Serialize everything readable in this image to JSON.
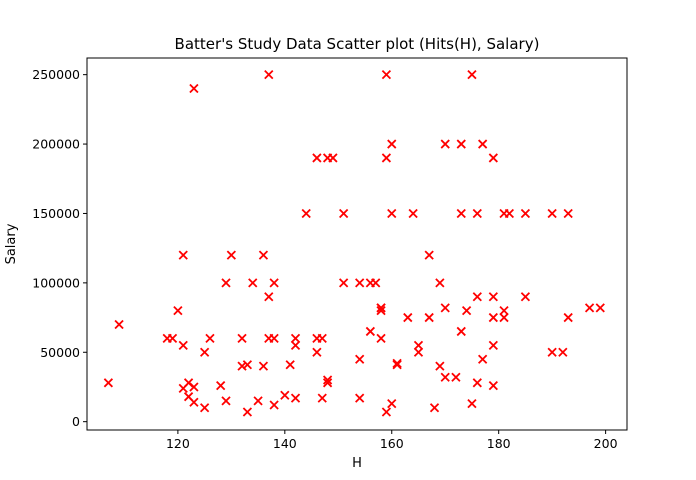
{
  "chart_data": {
    "type": "scatter",
    "title": "Batter's Study Data Scatter plot (Hits(H), Salary)",
    "xlabel": "H",
    "ylabel": "Salary",
    "xlim": [
      103,
      204
    ],
    "ylim": [
      -6000,
      262000
    ],
    "xticks": [
      120,
      140,
      160,
      180,
      200
    ],
    "yticks": [
      0,
      50000,
      100000,
      150000,
      200000,
      250000
    ],
    "grid": false,
    "marker": "x",
    "marker_color": "#ff0000",
    "x": [
      107,
      109,
      118,
      119,
      120,
      121,
      121,
      121,
      122,
      122,
      123,
      123,
      123,
      125,
      125,
      126,
      128,
      129,
      129,
      130,
      132,
      132,
      133,
      133,
      134,
      135,
      136,
      136,
      137,
      137,
      137,
      138,
      138,
      138,
      140,
      141,
      142,
      142,
      142,
      144,
      146,
      146,
      146,
      147,
      147,
      148,
      148,
      148,
      149,
      151,
      151,
      154,
      154,
      154,
      156,
      156,
      157,
      158,
      158,
      158,
      158,
      159,
      159,
      159,
      160,
      160,
      160,
      161,
      161,
      163,
      164,
      165,
      165,
      167,
      167,
      168,
      169,
      169,
      170,
      170,
      170,
      172,
      173,
      173,
      173,
      174,
      175,
      175,
      176,
      176,
      176,
      177,
      177,
      179,
      179,
      179,
      179,
      179,
      181,
      181,
      181,
      182,
      185,
      185,
      190,
      190,
      192,
      193,
      193,
      197,
      199
    ],
    "y": [
      28000,
      70000,
      60000,
      60000,
      80000,
      120000,
      55000,
      24000,
      28000,
      18000,
      240000,
      25000,
      14000,
      50000,
      10000,
      60000,
      26000,
      100000,
      15000,
      120000,
      60000,
      40000,
      41000,
      7000,
      100000,
      15000,
      120000,
      40000,
      250000,
      90000,
      60000,
      60000,
      100000,
      12000,
      19000,
      41000,
      55000,
      60000,
      17000,
      150000,
      190000,
      60000,
      50000,
      17000,
      60000,
      190000,
      28000,
      30000,
      190000,
      150000,
      100000,
      100000,
      45000,
      17000,
      65000,
      100000,
      100000,
      80000,
      60000,
      82000,
      82000,
      250000,
      190000,
      7000,
      200000,
      150000,
      13000,
      41000,
      42000,
      75000,
      150000,
      50000,
      55000,
      120000,
      75000,
      10000,
      100000,
      40000,
      200000,
      82000,
      32000,
      32000,
      200000,
      150000,
      65000,
      80000,
      13000,
      250000,
      28000,
      150000,
      90000,
      45000,
      200000,
      190000,
      90000,
      75000,
      55000,
      26000,
      150000,
      75000,
      80000,
      150000,
      150000,
      90000,
      150000,
      50000,
      50000,
      150000,
      75000,
      82000,
      82000
    ]
  }
}
